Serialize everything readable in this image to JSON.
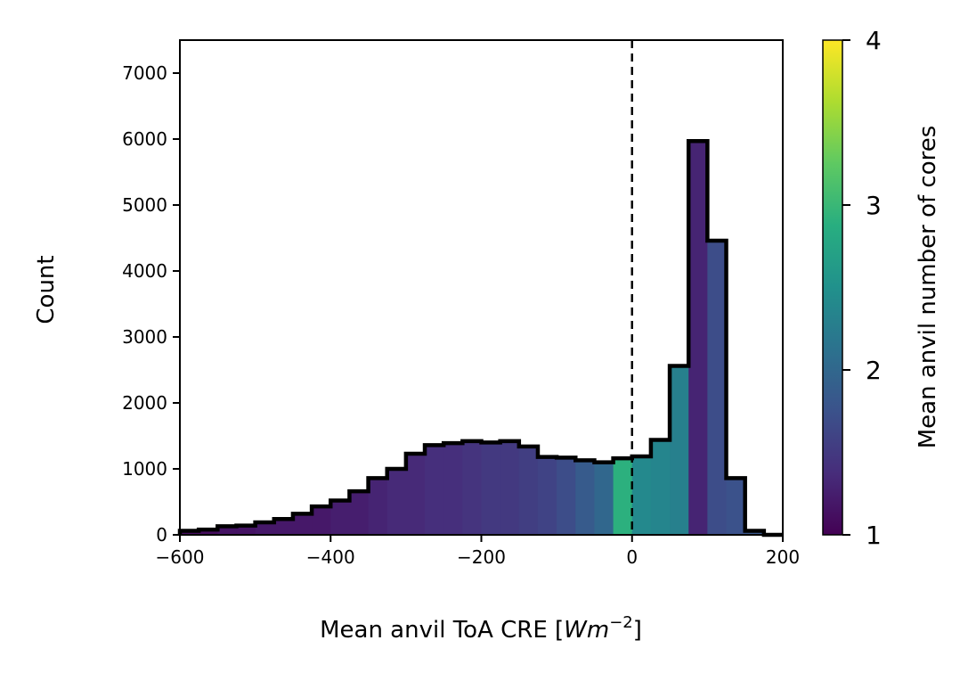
{
  "chart_data": {
    "type": "bar",
    "xlabel": "Mean anvil ToA CRE [",
    "xlabel_math": "Wm",
    "xlabel_exp": "−2",
    "xlabel_end": "]",
    "ylabel": "Count",
    "colorbar_label": "Mean anvil number of cores",
    "xlim": [
      -600,
      200
    ],
    "ylim": [
      0,
      7500
    ],
    "xticks": [
      -600,
      -400,
      -200,
      0,
      200
    ],
    "xtick_labels": [
      "−600",
      "−400",
      "−200",
      "0",
      "200"
    ],
    "yticks": [
      0,
      1000,
      2000,
      3000,
      4000,
      5000,
      6000,
      7000
    ],
    "ytick_labels": [
      "0",
      "1000",
      "2000",
      "3000",
      "4000",
      "5000",
      "6000",
      "7000"
    ],
    "colorbar_range": [
      1,
      4
    ],
    "colorbar_ticks": [
      1,
      2,
      3,
      4
    ],
    "colorbar_tick_labels": [
      "1",
      "2",
      "3",
      "4"
    ],
    "colormap": "viridis",
    "vline_x": 0,
    "bin_width": 25,
    "bin_edges_start": -600,
    "counts": [
      60,
      80,
      130,
      140,
      190,
      240,
      320,
      430,
      520,
      660,
      860,
      1000,
      1230,
      1360,
      1390,
      1420,
      1400,
      1420,
      1340,
      1180,
      1170,
      1130,
      1100,
      1160,
      1190,
      1440,
      2560,
      5970,
      4460,
      860,
      60,
      0
    ],
    "mean_cores": [
      1.1,
      1.1,
      1.15,
      1.15,
      1.2,
      1.2,
      1.2,
      1.2,
      1.25,
      1.25,
      1.3,
      1.35,
      1.35,
      1.4,
      1.4,
      1.45,
      1.5,
      1.5,
      1.55,
      1.6,
      1.7,
      1.85,
      2.0,
      2.9,
      2.4,
      2.35,
      2.3,
      1.3,
      1.7,
      1.75,
      1.8,
      1.8
    ]
  }
}
